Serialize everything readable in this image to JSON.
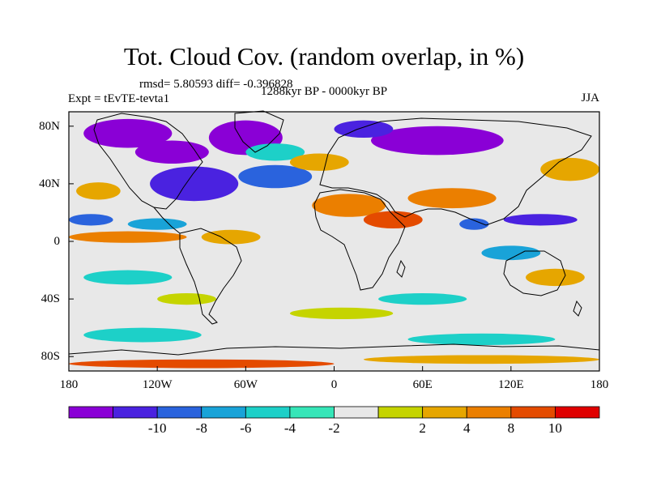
{
  "title": "Tot. Cloud Cov. (random overlap, in %)",
  "stats_line": "rmsd= 5.80593 diff= -0.396828",
  "experiment": "Expt = tEvTE-tevta1",
  "period": "1288kyr BP - 0000kyr BP",
  "season": "JJA",
  "map": {
    "projection": "cylindrical equidistant",
    "lon_range": [
      -180,
      180
    ],
    "lat_range": [
      -90,
      90
    ],
    "lat_ticks": [
      {
        "value": 80,
        "label": "80N"
      },
      {
        "value": 40,
        "label": "40N"
      },
      {
        "value": 0,
        "label": "0"
      },
      {
        "value": -40,
        "label": "40S"
      },
      {
        "value": -80,
        "label": "80S"
      }
    ],
    "lon_ticks": [
      {
        "value": -180,
        "label": "180"
      },
      {
        "value": -120,
        "label": "120W"
      },
      {
        "value": -60,
        "label": "60W"
      },
      {
        "value": 0,
        "label": "0"
      },
      {
        "value": 60,
        "label": "60E"
      },
      {
        "value": 120,
        "label": "120E"
      },
      {
        "value": 180,
        "label": "180"
      }
    ],
    "background_color": "#e8e8e8",
    "anomaly_regions": [
      {
        "lon": -140,
        "lat": 75,
        "rlon": 30,
        "rlat": 10,
        "level": -12
      },
      {
        "lon": -110,
        "lat": 62,
        "rlon": 25,
        "rlat": 8,
        "level": -12
      },
      {
        "lon": -60,
        "lat": 72,
        "rlon": 25,
        "rlat": 12,
        "level": -12
      },
      {
        "lon": 70,
        "lat": 70,
        "rlon": 45,
        "rlat": 10,
        "level": -12
      },
      {
        "lon": 20,
        "lat": 78,
        "rlon": 20,
        "rlat": 6,
        "level": -9
      },
      {
        "lon": -95,
        "lat": 40,
        "rlon": 30,
        "rlat": 12,
        "level": -9
      },
      {
        "lon": -40,
        "lat": 45,
        "rlon": 25,
        "rlat": 8,
        "level": -7
      },
      {
        "lon": -165,
        "lat": 15,
        "rlon": 15,
        "rlat": 4,
        "level": -7
      },
      {
        "lon": -120,
        "lat": 12,
        "rlon": 20,
        "rlat": 4,
        "level": -5
      },
      {
        "lon": -40,
        "lat": 62,
        "rlon": 20,
        "rlat": 6,
        "level": -3
      },
      {
        "lon": 140,
        "lat": 15,
        "rlon": 25,
        "rlat": 4,
        "level": -9
      },
      {
        "lon": 95,
        "lat": 12,
        "rlon": 10,
        "rlat": 4,
        "level": -7
      },
      {
        "lon": 120,
        "lat": -8,
        "rlon": 20,
        "rlat": 5,
        "level": -5
      },
      {
        "lon": -140,
        "lat": -25,
        "rlon": 30,
        "rlat": 5,
        "level": -3
      },
      {
        "lon": 60,
        "lat": -40,
        "rlon": 30,
        "rlat": 4,
        "level": -3
      },
      {
        "lon": -130,
        "lat": -65,
        "rlon": 40,
        "rlat": 5,
        "level": -3
      },
      {
        "lon": 100,
        "lat": -68,
        "rlon": 50,
        "rlat": 4,
        "level": -3
      },
      {
        "lon": 10,
        "lat": 25,
        "rlon": 25,
        "rlat": 8,
        "level": 9
      },
      {
        "lon": 40,
        "lat": 15,
        "rlon": 20,
        "rlat": 6,
        "level": 11
      },
      {
        "lon": 80,
        "lat": 30,
        "rlon": 30,
        "rlat": 7,
        "level": 9
      },
      {
        "lon": -160,
        "lat": 35,
        "rlon": 15,
        "rlat": 6,
        "level": 6
      },
      {
        "lon": 160,
        "lat": 50,
        "rlon": 20,
        "rlat": 8,
        "level": 6
      },
      {
        "lon": -140,
        "lat": 3,
        "rlon": 40,
        "rlat": 4,
        "level": 9
      },
      {
        "lon": -70,
        "lat": 3,
        "rlon": 20,
        "rlat": 5,
        "level": 7
      },
      {
        "lon": -10,
        "lat": 55,
        "rlon": 20,
        "rlat": 6,
        "level": 6
      },
      {
        "lon": 150,
        "lat": -25,
        "rlon": 20,
        "rlat": 6,
        "level": 6
      },
      {
        "lon": 5,
        "lat": -50,
        "rlon": 35,
        "rlat": 4,
        "level": 3
      },
      {
        "lon": -100,
        "lat": -40,
        "rlon": 20,
        "rlat": 4,
        "level": 3
      },
      {
        "lon": -90,
        "lat": -85,
        "rlon": 90,
        "rlat": 3,
        "level": 11
      },
      {
        "lon": 100,
        "lat": -82,
        "rlon": 80,
        "rlat": 3,
        "level": 7
      }
    ]
  },
  "colorbar": {
    "colors": [
      "#8a00d6",
      "#4a22e0",
      "#2a63dd",
      "#19a3d8",
      "#1dd0c8",
      "#36e6b8",
      "#e8e8e8",
      "#c5d400",
      "#e6a600",
      "#eb7f00",
      "#e44b00",
      "#e00000"
    ],
    "levels": [
      -12,
      -10,
      -8,
      -6,
      -4,
      -2,
      0,
      2,
      4,
      8,
      10,
      12
    ],
    "labels": [
      {
        "value": "-10",
        "index": 1
      },
      {
        "value": "-8",
        "index": 2
      },
      {
        "value": "-6",
        "index": 3
      },
      {
        "value": "-4",
        "index": 4
      },
      {
        "value": "-2",
        "index": 5
      },
      {
        "value": "2",
        "index": 7
      },
      {
        "value": "4",
        "index": 8
      },
      {
        "value": "8",
        "index": 9
      },
      {
        "value": "10",
        "index": 10
      }
    ]
  }
}
